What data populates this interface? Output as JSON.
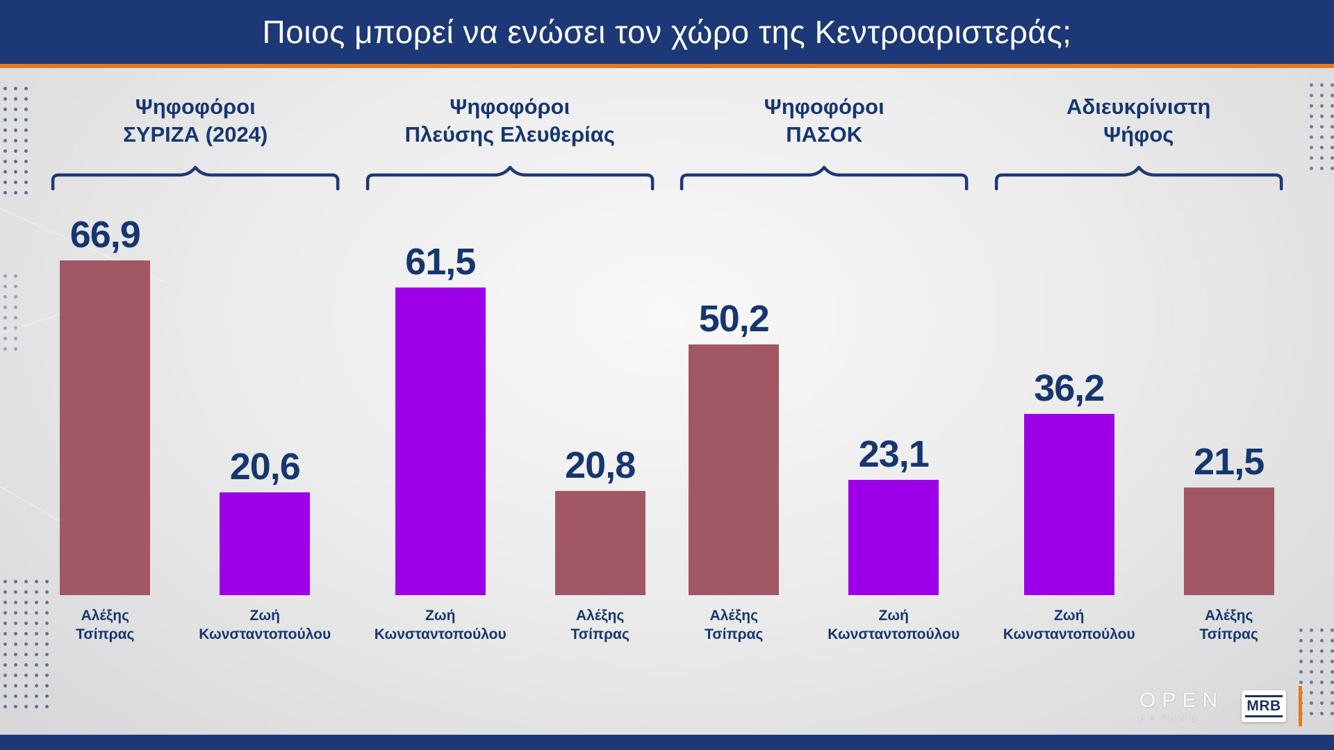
{
  "title": "Ποιος μπορεί να ενώσει τον χώρο της Κεντροαριστεράς;",
  "colors": {
    "navy": "#1c3876",
    "text_navy": "#16366f",
    "orange": "#e87722",
    "maroon": "#a15864",
    "purple": "#9d00e8",
    "background": "#ececec"
  },
  "chart_data": {
    "type": "bar",
    "title": "Ποιος μπορεί να ενώσει τον χώρο της Κεντροαριστεράς;",
    "unit": "%",
    "ylim": [
      0,
      70
    ],
    "grid": false,
    "legend": "none",
    "groups": [
      {
        "header_line1": "Ψηφοφόροι",
        "header_line2": "ΣΥΡΙΖΑ (2024)",
        "bars": [
          {
            "name_line1": "Αλέξης",
            "name_line2": "Τσίπρας",
            "value": 66.9,
            "label": "66,9",
            "color": "maroon"
          },
          {
            "name_line1": "Ζωή",
            "name_line2": "Κωνσταντοπούλου",
            "value": 20.6,
            "label": "20,6",
            "color": "purple"
          }
        ]
      },
      {
        "header_line1": "Ψηφοφόροι",
        "header_line2": "Πλεύσης Ελευθερίας",
        "bars": [
          {
            "name_line1": "Ζωή",
            "name_line2": "Κωνσταντοπούλου",
            "value": 61.5,
            "label": "61,5",
            "color": "purple"
          },
          {
            "name_line1": "Αλέξης",
            "name_line2": "Τσίπρας",
            "value": 20.8,
            "label": "20,8",
            "color": "maroon"
          }
        ]
      },
      {
        "header_line1": "Ψηφοφόροι",
        "header_line2": "ΠΑΣΟΚ",
        "bars": [
          {
            "name_line1": "Αλέξης",
            "name_line2": "Τσίπρας",
            "value": 50.2,
            "label": "50,2",
            "color": "maroon"
          },
          {
            "name_line1": "Ζωή",
            "name_line2": "Κωνσταντοπούλου",
            "value": 23.1,
            "label": "23,1",
            "color": "purple"
          }
        ]
      },
      {
        "header_line1": "Αδιευκρίνιστη",
        "header_line2": "Ψήφος",
        "bars": [
          {
            "name_line1": "Ζωή",
            "name_line2": "Κωνσταντοπούλου",
            "value": 36.2,
            "label": "36,2",
            "color": "purple"
          },
          {
            "name_line1": "Αλέξης",
            "name_line2": "Τσίπρας",
            "value": 21.5,
            "label": "21,5",
            "color": "maroon"
          }
        ]
      }
    ]
  },
  "footer": {
    "open_logo": "OPEN",
    "open_sub": "BEYOND",
    "mrb_logo": "MRB"
  }
}
